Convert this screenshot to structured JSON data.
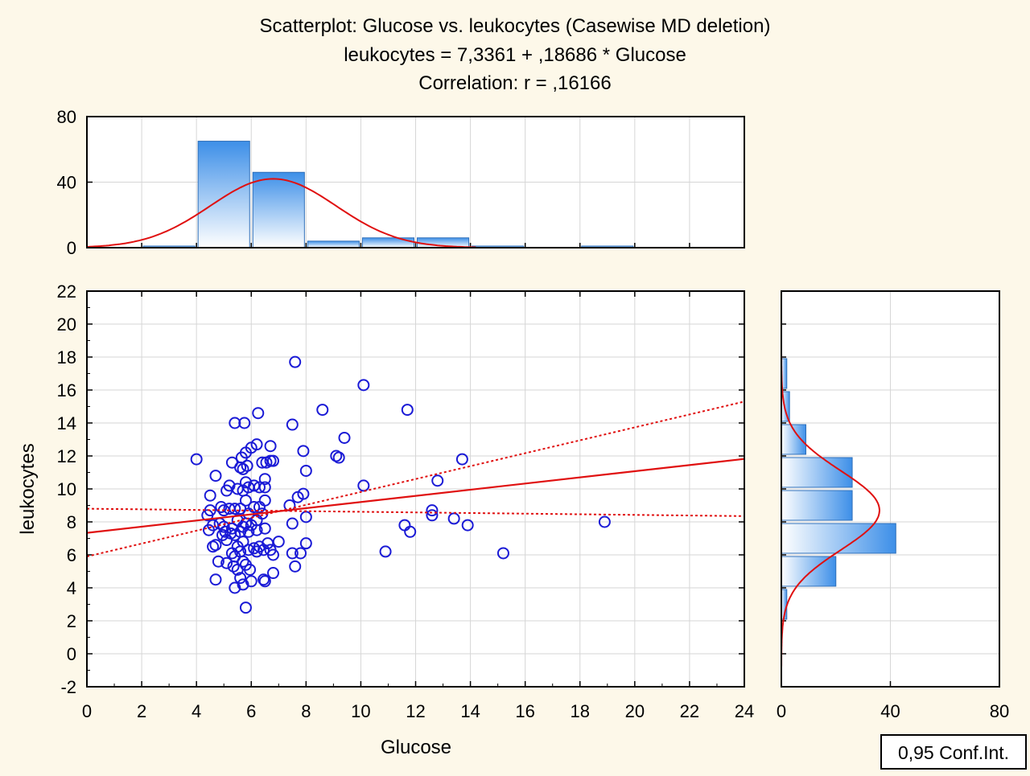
{
  "titles": [
    "Scatterplot: Glucose  vs. leukocytes (Casewise MD deletion)",
    "leukocytes = 7,3361 + ,18686 * Glucose",
    "Correlation: r = ,16166"
  ],
  "legend_label": "0,95 Conf.Int.",
  "colors": {
    "background": "#fdf8e9",
    "points": "#1a1ad6",
    "fit_line": "#e01010",
    "bar_dark": "#3d8fe8",
    "bar_light": "#ffffff"
  },
  "chart_data": [
    {
      "type": "scatter",
      "xlabel": "Glucose",
      "ylabel": "leukocytes",
      "xlim": [
        0,
        24
      ],
      "ylim": [
        -2,
        22
      ],
      "x_ticks": [
        "0",
        "2",
        "4",
        "6",
        "8",
        "10",
        "12",
        "14",
        "16",
        "18",
        "20",
        "22",
        "24"
      ],
      "y_ticks": [
        "-2",
        "0",
        "2",
        "4",
        "6",
        "8",
        "10",
        "12",
        "14",
        "16",
        "18",
        "20",
        "22"
      ],
      "grid": true,
      "regression": {
        "intercept": 7.3361,
        "slope": 0.18686
      },
      "conf_band": {
        "upper": [
          [
            0,
            5.9
          ],
          [
            24,
            15.3
          ]
        ],
        "lower": [
          [
            0,
            8.8
          ],
          [
            24,
            8.35
          ]
        ]
      },
      "points": [
        [
          4.0,
          11.8
        ],
        [
          4.4,
          8.4
        ],
        [
          4.45,
          7.5
        ],
        [
          4.5,
          9.6
        ],
        [
          4.5,
          8.7
        ],
        [
          4.6,
          6.5
        ],
        [
          4.6,
          7.8
        ],
        [
          4.7,
          10.8
        ],
        [
          4.7,
          6.6
        ],
        [
          4.7,
          4.5
        ],
        [
          4.8,
          5.6
        ],
        [
          4.85,
          7.9
        ],
        [
          4.9,
          8.9
        ],
        [
          4.95,
          7.2
        ],
        [
          5.0,
          8.7
        ],
        [
          5.0,
          7.7
        ],
        [
          5.05,
          7.4
        ],
        [
          5.1,
          9.9
        ],
        [
          5.1,
          6.9
        ],
        [
          5.1,
          5.5
        ],
        [
          5.2,
          10.2
        ],
        [
          5.2,
          8.8
        ],
        [
          5.25,
          7.3
        ],
        [
          5.3,
          11.6
        ],
        [
          5.3,
          7.6
        ],
        [
          5.3,
          6.1
        ],
        [
          5.35,
          5.3
        ],
        [
          5.4,
          14.0
        ],
        [
          5.4,
          8.8
        ],
        [
          5.4,
          7.2
        ],
        [
          5.4,
          5.9
        ],
        [
          5.4,
          4.0
        ],
        [
          5.5,
          10.0
        ],
        [
          5.5,
          8.1
        ],
        [
          5.5,
          6.5
        ],
        [
          5.5,
          5.1
        ],
        [
          5.6,
          11.3
        ],
        [
          5.6,
          8.8
        ],
        [
          5.6,
          7.4
        ],
        [
          5.6,
          6.2
        ],
        [
          5.6,
          4.6
        ],
        [
          5.65,
          11.9
        ],
        [
          5.7,
          11.2
        ],
        [
          5.7,
          9.9
        ],
        [
          5.7,
          7.7
        ],
        [
          5.7,
          6.8
        ],
        [
          5.7,
          5.6
        ],
        [
          5.7,
          4.2
        ],
        [
          5.75,
          14.0
        ],
        [
          5.8,
          12.2
        ],
        [
          5.8,
          10.4
        ],
        [
          5.8,
          9.3
        ],
        [
          5.8,
          7.9
        ],
        [
          5.8,
          5.4
        ],
        [
          5.8,
          2.8
        ],
        [
          5.85,
          11.4
        ],
        [
          5.9,
          10.1
        ],
        [
          5.9,
          8.5
        ],
        [
          5.9,
          7.4
        ],
        [
          5.9,
          6.3
        ],
        [
          5.95,
          5.1
        ],
        [
          6.0,
          12.5
        ],
        [
          6.0,
          7.8
        ],
        [
          6.0,
          4.4
        ],
        [
          6.1,
          10.2
        ],
        [
          6.1,
          8.9
        ],
        [
          6.1,
          6.4
        ],
        [
          6.2,
          12.7
        ],
        [
          6.2,
          8.1
        ],
        [
          6.2,
          7.5
        ],
        [
          6.2,
          6.2
        ],
        [
          6.25,
          14.6
        ],
        [
          6.3,
          10.1
        ],
        [
          6.3,
          8.9
        ],
        [
          6.3,
          6.5
        ],
        [
          6.4,
          11.6
        ],
        [
          6.4,
          8.5
        ],
        [
          6.45,
          6.3
        ],
        [
          6.45,
          4.5
        ],
        [
          6.5,
          10.6
        ],
        [
          6.5,
          10.1
        ],
        [
          6.5,
          9.3
        ],
        [
          6.5,
          7.6
        ],
        [
          6.5,
          4.4
        ],
        [
          6.55,
          11.6
        ],
        [
          6.6,
          6.7
        ],
        [
          6.7,
          12.6
        ],
        [
          6.7,
          11.7
        ],
        [
          6.7,
          6.3
        ],
        [
          6.8,
          11.7
        ],
        [
          6.8,
          6.0
        ],
        [
          6.8,
          4.9
        ],
        [
          7.0,
          6.8
        ],
        [
          7.4,
          9.0
        ],
        [
          7.5,
          13.9
        ],
        [
          7.5,
          7.9
        ],
        [
          7.5,
          6.1
        ],
        [
          7.6,
          17.7
        ],
        [
          7.6,
          5.3
        ],
        [
          7.7,
          9.5
        ],
        [
          7.8,
          6.1
        ],
        [
          7.9,
          12.3
        ],
        [
          7.9,
          9.7
        ],
        [
          8.0,
          11.1
        ],
        [
          8.0,
          8.3
        ],
        [
          8.0,
          6.7
        ],
        [
          8.6,
          14.8
        ],
        [
          9.1,
          12.0
        ],
        [
          9.2,
          11.9
        ],
        [
          9.4,
          13.1
        ],
        [
          10.1,
          16.3
        ],
        [
          10.1,
          10.2
        ],
        [
          10.9,
          6.2
        ],
        [
          11.6,
          7.8
        ],
        [
          11.7,
          14.8
        ],
        [
          11.8,
          7.4
        ],
        [
          12.6,
          8.7
        ],
        [
          12.6,
          8.4
        ],
        [
          12.8,
          10.5
        ],
        [
          13.4,
          8.2
        ],
        [
          13.7,
          11.8
        ],
        [
          13.9,
          7.8
        ],
        [
          15.2,
          6.1
        ],
        [
          18.9,
          8.0
        ]
      ]
    },
    {
      "type": "bar",
      "orientation": "vertical",
      "description_axis": "Glucose histogram",
      "ylim": [
        0,
        80
      ],
      "y_ticks": [
        "0",
        "40",
        "80"
      ],
      "bins": [
        {
          "from": 2,
          "to": 4,
          "count": 1
        },
        {
          "from": 4,
          "to": 6,
          "count": 65
        },
        {
          "from": 6,
          "to": 8,
          "count": 46
        },
        {
          "from": 8,
          "to": 10,
          "count": 4
        },
        {
          "from": 10,
          "to": 12,
          "count": 6
        },
        {
          "from": 12,
          "to": 14,
          "count": 6
        },
        {
          "from": 14,
          "to": 16,
          "count": 1
        },
        {
          "from": 16,
          "to": 18,
          "count": 0
        },
        {
          "from": 18,
          "to": 20,
          "count": 1
        }
      ],
      "normal_fit": {
        "mean": 6.8,
        "sd": 2.3,
        "peak": 42
      }
    },
    {
      "type": "bar",
      "orientation": "horizontal",
      "xlim": [
        0,
        80
      ],
      "x_ticks": [
        "0",
        "40",
        "80"
      ],
      "bins": [
        {
          "from": 16,
          "to": 18,
          "count": 2
        },
        {
          "from": 14,
          "to": 16,
          "count": 3
        },
        {
          "from": 12,
          "to": 14,
          "count": 9
        },
        {
          "from": 10,
          "to": 12,
          "count": 26
        },
        {
          "from": 8,
          "to": 10,
          "count": 26
        },
        {
          "from": 6,
          "to": 8,
          "count": 42
        },
        {
          "from": 4,
          "to": 6,
          "count": 20
        },
        {
          "from": 2,
          "to": 4,
          "count": 2
        }
      ],
      "normal_fit": {
        "mean": 8.7,
        "sd": 2.4,
        "peak": 36
      }
    }
  ]
}
